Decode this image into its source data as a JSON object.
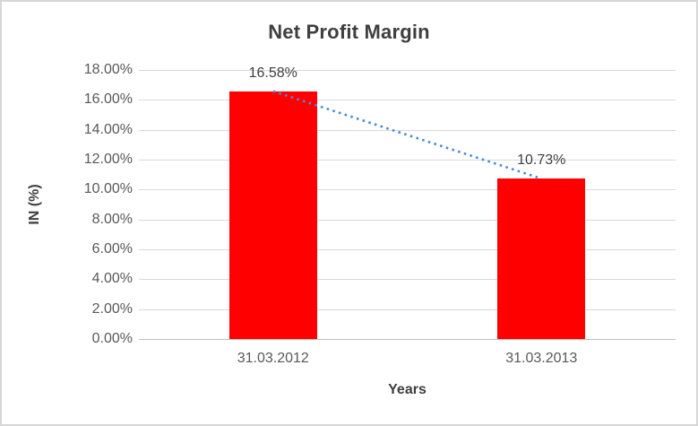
{
  "frame": {
    "background": "#FFFFFF",
    "border_color": "#D6D6D6"
  },
  "chart_data": {
    "type": "bar",
    "title": "Net Profit Margin",
    "categories": [
      "31.03.2012",
      "31.03.2013"
    ],
    "series": [
      {
        "name": "Net Profit Margin",
        "values": [
          16.58,
          10.73
        ]
      }
    ],
    "data_labels": [
      "16.58%",
      "10.73%"
    ],
    "xlabel": "Years",
    "ylabel": "IN (%)",
    "ylim": [
      0,
      18
    ],
    "ytick_step": 2,
    "ytick_labels": [
      "0.00%",
      "2.00%",
      "4.00%",
      "6.00%",
      "8.00%",
      "10.00%",
      "12.00%",
      "14.00%",
      "16.00%",
      "18.00%"
    ],
    "grid": true,
    "legend": "none",
    "bar_color": "#FF0000",
    "gridline_color": "#D9D9D9",
    "axis_line_color": "#BFBFBF",
    "title_color": "#3F3F3F",
    "tick_label_color": "#595959",
    "trendline": {
      "type": "linear",
      "style": "dotted",
      "color": "#4A8BD4",
      "start_value": 16.58,
      "end_value": 10.73
    }
  }
}
